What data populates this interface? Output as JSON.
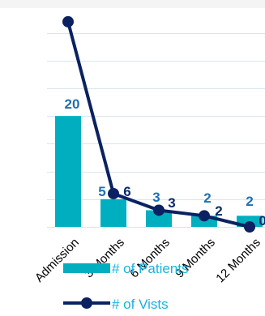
{
  "chart_data": {
    "type": "bar",
    "categories": [
      "Admission",
      "3 Months",
      "6 Months",
      "9 Months",
      "12 Months"
    ],
    "series": [
      {
        "name": "# of Patients",
        "type": "bar",
        "values": [
          20,
          5,
          3,
          2,
          2
        ],
        "color": "#00afbf"
      },
      {
        "name": "# of Vists",
        "type": "line",
        "values": [
          37,
          6,
          3,
          2,
          0
        ],
        "color": "#0a2261"
      }
    ],
    "bar_labels": [
      "20",
      "5",
      "3",
      "2",
      "2"
    ],
    "line_labels": [
      "",
      "6",
      "3",
      "2",
      "0"
    ],
    "ylim": [
      0,
      38
    ],
    "grid": true,
    "legend_position": "bottom",
    "colors": {
      "grid": "#d6e6f2",
      "bar_label": "#1f6fb2",
      "line_label": "#0a2a6b",
      "legend_text": "#1ab3dc"
    }
  }
}
